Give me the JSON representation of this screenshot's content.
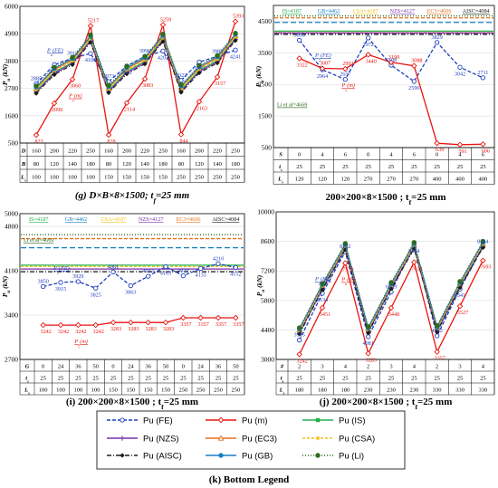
{
  "colors": {
    "Pu (FE)": "#1f3fbf",
    "Pu (m)": "#e8150f",
    "Pu (IS)": "#22b04b",
    "Pu (NZS)": "#7b2fa8",
    "Pu (EC3)": "#e8701a",
    "Pu (CSA)": "#f2c21b",
    "Pu (AISC)": "#1c1c1c",
    "Pu (GB)": "#1a7fc1",
    "Pu (Li)": "#2e6b1e"
  },
  "chart_data": [
    {
      "id": "g",
      "type": "line",
      "title": "(g) D×B×8×1500; t",
      "title_sub": "f",
      "title_tail": "=25 mm",
      "ylabel": "P",
      "ylabel_sub": "u",
      "ylabel_unit": " (kN)",
      "yticks": [
        500,
        1600,
        2700,
        3800,
        4900,
        6000
      ],
      "ylim": [
        500,
        6000
      ],
      "table": [
        {
          "label": "D",
          "values": [
            "160",
            "200",
            "220",
            "250",
            "160",
            "200",
            "220",
            "250",
            "160",
            "200",
            "220",
            "250"
          ]
        },
        {
          "label": "B",
          "values": [
            "80",
            "120",
            "140",
            "180",
            "80",
            "120",
            "140",
            "180",
            "80",
            "120",
            "140",
            "180"
          ]
        },
        {
          "label": "L",
          "sub": "s",
          "values": [
            "100",
            "100",
            "100",
            "100",
            "150",
            "150",
            "150",
            "150",
            "250",
            "250",
            "250",
            "250"
          ]
        }
      ],
      "series": [
        {
          "name": "Pu (FE)",
          "values": [
            2885,
            3655,
            3912,
            4100,
            2973,
            3601,
            3990,
            4202,
            3022,
            3760,
            3985,
            4241
          ]
        },
        {
          "name": "Pu (m)",
          "values": [
            823,
            2099,
            3060,
            5217,
            828,
            2114,
            3083,
            5259,
            844,
            2163,
            3157,
            5393
          ]
        },
        {
          "name": "Pu (IS)",
          "values": [
            2600,
            3350,
            3750,
            4650,
            2620,
            3380,
            3780,
            4680,
            2640,
            3420,
            3820,
            4720
          ]
        },
        {
          "name": "Pu (NZS)",
          "values": [
            2550,
            3300,
            3700,
            4600,
            2570,
            3330,
            3730,
            4630,
            2590,
            3370,
            3770,
            4670
          ]
        },
        {
          "name": "Pu (EC3)",
          "values": [
            2700,
            3450,
            3850,
            4750,
            2720,
            3480,
            3880,
            4780,
            2740,
            3520,
            3920,
            4820
          ]
        },
        {
          "name": "Pu (CSA)",
          "values": [
            2650,
            3400,
            3800,
            4700,
            2670,
            3430,
            3830,
            4730,
            2690,
            3470,
            3870,
            4770
          ]
        },
        {
          "name": "Pu (AISC)",
          "values": [
            2500,
            3250,
            3650,
            4550,
            2520,
            3280,
            3680,
            4580,
            2540,
            3320,
            3720,
            4620
          ]
        },
        {
          "name": "Pu (GB)",
          "values": [
            2750,
            3500,
            3900,
            4800,
            2770,
            3530,
            3930,
            4830,
            2790,
            3570,
            3970,
            4870
          ]
        },
        {
          "name": "Pu (Li)",
          "values": [
            2800,
            3550,
            3950,
            4850,
            2820,
            3580,
            3980,
            4880,
            2840,
            3620,
            4020,
            4920
          ]
        }
      ],
      "labels_fe": [
        "2885",
        "3655",
        "3912",
        "4100",
        "2973",
        "3601",
        "3990",
        "4202",
        "3022",
        "3760",
        "3985",
        "4241"
      ],
      "labels_m": [
        "823",
        "2099",
        "3060",
        "5217",
        "828",
        "2114",
        "3083",
        "5259",
        "844",
        "2163",
        "3157",
        "5393"
      ],
      "inline": {
        "fe": "P",
        "fe_sub": "u",
        "fe_tail": "(FE)",
        "m": "P",
        "m_sub": "u",
        "m_tail": "(m)"
      }
    },
    {
      "id": "h",
      "type": "line",
      "title": "200×200×8×1500 ; t",
      "title_sub": "f",
      "title_tail": "=25 mm",
      "ylabel": "P",
      "ylabel_sub": "u",
      "ylabel_unit": " (kN)",
      "yticks": [
        500,
        1500,
        2500,
        3500,
        4500
      ],
      "ylim": [
        500,
        5000
      ],
      "table": [
        {
          "label": "S",
          "values": [
            "0",
            "4",
            "6",
            "0",
            "4",
            "6",
            "0",
            "4",
            "6"
          ]
        },
        {
          "label": "t",
          "sub": "s",
          "values": [
            "25",
            "25",
            "25",
            "25",
            "25",
            "25",
            "25",
            "25",
            "25"
          ]
        },
        {
          "label": "L",
          "sub": "s",
          "values": [
            "120",
            "120",
            "120",
            "270",
            "270",
            "270",
            "400",
            "400",
            "400"
          ]
        }
      ],
      "codes": [
        {
          "name": "IS=4187",
          "value": 4187,
          "series": "Pu (IS)"
        },
        {
          "name": "GB=4462",
          "value": 4462,
          "series": "Pu (GB)"
        },
        {
          "name": "CSA=4187",
          "value": 4187,
          "series": "Pu (CSA)"
        },
        {
          "name": "NZS=4127",
          "value": 4127,
          "series": "Pu (NZS)"
        },
        {
          "name": "EC3=4606",
          "value": 4606,
          "series": "Pu (EC3)"
        },
        {
          "name": "AISC=4084",
          "value": 4084,
          "series": "Pu (AISC)"
        }
      ],
      "li_label": "Li et al=4669",
      "series": [
        {
          "name": "Pu (FE)",
          "values": [
            3898,
            2964,
            2657,
            3972,
            3108,
            2596,
            3829,
            3042,
            2711
          ]
        },
        {
          "name": "Pu (m)",
          "values": [
            3322,
            3007,
            2993,
            3440,
            3199,
            3088,
            639,
            591,
            606
          ]
        }
      ],
      "labels_fe": [
        "3898",
        "2964",
        "2657",
        "3972",
        "3108",
        "2596",
        "3829",
        "3042",
        "2711"
      ],
      "labels_m": [
        "3322",
        "3007",
        "2993",
        "3440",
        "3199",
        "3088",
        "639",
        "591",
        "606"
      ],
      "inline": {
        "fe": "P",
        "fe_sub": "u",
        "fe_tail": "(FE)",
        "m": "P",
        "m_sub": "u",
        "m_tail": "(m)"
      }
    },
    {
      "id": "i",
      "type": "line",
      "title": "(i) 200×200×8×1500 ; t",
      "title_sub": "f",
      "title_tail": "=25 mm",
      "ylabel": "P",
      "ylabel_sub": "u",
      "ylabel_unit": " (kN)",
      "yticks": [
        2700,
        3400,
        4100,
        4800
      ],
      "ylim": [
        2700,
        5000
      ],
      "ytick_labels": [
        "2700",
        "3400",
        "4100",
        "4800",
        "5000"
      ],
      "table": [
        {
          "label": "G",
          "values": [
            "0",
            "24",
            "36",
            "50",
            "0",
            "24",
            "36",
            "50",
            "0",
            "24",
            "36",
            "50"
          ]
        },
        {
          "label": "t",
          "sub": "s",
          "values": [
            "25",
            "25",
            "25",
            "25",
            "25",
            "25",
            "25",
            "25",
            "25",
            "25",
            "25",
            "25"
          ]
        },
        {
          "label": "L",
          "sub": "s",
          "values": [
            "100",
            "100",
            "100",
            "100",
            "150",
            "150",
            "150",
            "150",
            "250",
            "250",
            "250",
            "250"
          ]
        }
      ],
      "codes": [
        {
          "name": "IS=4187",
          "value": 4187,
          "series": "Pu (IS)"
        },
        {
          "name": "GB=4462",
          "value": 4462,
          "series": "Pu (GB)"
        },
        {
          "name": "CSA=4187",
          "value": 4187,
          "series": "Pu (CSA)"
        },
        {
          "name": "NZS=4127",
          "value": 4127,
          "series": "Pu (NZS)"
        },
        {
          "name": "EC3=4606",
          "value": 4606,
          "series": "Pu (EC3)"
        },
        {
          "name": "AISC=4084",
          "value": 4084,
          "series": "Pu (AISC)"
        }
      ],
      "li_label": "Li et al=4669",
      "series": [
        {
          "name": "Pu (FE)",
          "values": [
            3850,
            3915,
            3929,
            3825,
            4081,
            3863,
            4013,
            4163,
            4020,
            4135,
            4210,
            4152
          ]
        },
        {
          "name": "Pu (m)",
          "values": [
            3242,
            3242,
            3242,
            3242,
            3283,
            3283,
            3283,
            3283,
            3357,
            3357,
            3357,
            3357
          ]
        }
      ],
      "labels_fe": [
        "3850",
        "3915",
        "3929",
        "3825",
        "4081",
        "3863",
        "4013",
        "4163",
        "4020",
        "4135",
        "4210",
        "4152"
      ],
      "labels_m": [
        "3242",
        "3242",
        "3242",
        "3242",
        "3283",
        "3283",
        "3283",
        "3283",
        "3357",
        "3357",
        "3357",
        "3357"
      ],
      "inline": {
        "fe": "P",
        "fe_sub": "u",
        "fe_tail": "(FE)",
        "m": "P",
        "m_sub": "u",
        "m_tail": "(m)"
      }
    },
    {
      "id": "j",
      "type": "line",
      "title": "(j) 200×200×8×1500 ; t",
      "title_sub": "f",
      "title_tail": "=25 mm",
      "ylabel": "P",
      "ylabel_sub": "u",
      "ylabel_unit": " (kN)",
      "yticks": [
        3000,
        4400,
        5800,
        7200,
        8600,
        10000
      ],
      "ylim": [
        3000,
        10000
      ],
      "table": [
        {
          "label": "#",
          "values": [
            "2",
            "3",
            "4",
            "2",
            "3",
            "4",
            "2",
            "3",
            "4"
          ]
        },
        {
          "label": "t",
          "sub": "s",
          "values": [
            "25",
            "25",
            "25",
            "25",
            "25",
            "25",
            "25",
            "25",
            "25"
          ]
        },
        {
          "label": "L",
          "sub": "s",
          "values": [
            "180",
            "180",
            "180",
            "230",
            "230",
            "230",
            "330",
            "330",
            "330"
          ]
        }
      ],
      "series": [
        {
          "name": "Pu (FE)",
          "values": [
            3915,
            6134,
            8102,
            4081,
            6209,
            8444,
            4122,
            6341,
            8344
          ]
        },
        {
          "name": "Pu (m)",
          "values": [
            3242,
            5451,
            7570,
            3283,
            5448,
            7613,
            3357,
            5527,
            7693
          ]
        },
        {
          "name": "Pu (IS)",
          "values": [
            4300,
            6400,
            8300,
            4350,
            6450,
            8350,
            4400,
            6500,
            8400
          ]
        },
        {
          "name": "Pu (NZS)",
          "values": [
            4250,
            6350,
            8250,
            4300,
            6400,
            8300,
            4350,
            6450,
            8350
          ]
        },
        {
          "name": "Pu (EC3)",
          "values": [
            4400,
            6500,
            8400,
            4450,
            6550,
            8450,
            4500,
            6600,
            8500
          ]
        },
        {
          "name": "Pu (CSA)",
          "values": [
            4350,
            6450,
            8350,
            4400,
            6500,
            8400,
            4450,
            6550,
            8450
          ]
        },
        {
          "name": "Pu (AISC)",
          "values": [
            4200,
            6300,
            8200,
            4250,
            6350,
            8250,
            4300,
            6400,
            8300
          ]
        },
        {
          "name": "Pu (GB)",
          "values": [
            4450,
            6550,
            8450,
            4500,
            6600,
            8500,
            4550,
            6650,
            8550
          ]
        },
        {
          "name": "Pu (Li)",
          "values": [
            4500,
            6600,
            8500,
            4550,
            6650,
            8550,
            4600,
            6700,
            8600
          ]
        }
      ],
      "labels_fe": [
        "3915",
        "6134",
        "8102",
        "4081",
        "6209",
        "8444",
        "4122",
        "6341",
        "8344"
      ],
      "labels_m": [
        "3242",
        "5451",
        "7570",
        "3283",
        "5448",
        "7613",
        "3357",
        "5527",
        "7693"
      ],
      "inline": {
        "fe": "P",
        "fe_sub": "u",
        "fe_tail": "(FE)",
        "m": "P",
        "m_sub": "u",
        "m_tail": "(m)"
      }
    }
  ],
  "legend": {
    "title": "(k) Bottom Legend",
    "entries": [
      {
        "series": "Pu (FE)",
        "label": "Pu (FE)",
        "marker": "circle-open",
        "dash": "4,2"
      },
      {
        "series": "Pu (m)",
        "label": "Pu (m)",
        "marker": "diamond-open",
        "dash": ""
      },
      {
        "series": "Pu (IS)",
        "label": "Pu (IS)",
        "marker": "square",
        "dash": ""
      },
      {
        "series": "Pu (NZS)",
        "label": "Pu (NZS)",
        "marker": "plus",
        "dash": ""
      },
      {
        "series": "Pu (EC3)",
        "label": "Pu (EC3)",
        "marker": "triangle-open",
        "dash": ""
      },
      {
        "series": "Pu (CSA)",
        "label": "Pu (CSA)",
        "marker": "star",
        "dash": "3,2"
      },
      {
        "series": "Pu (AISC)",
        "label": "Pu (AISC)",
        "marker": "diamond",
        "dash": "5,2,1,2"
      },
      {
        "series": "Pu (GB)",
        "label": "Pu (GB)",
        "marker": "circle",
        "dash": ""
      },
      {
        "series": "Pu (Li)",
        "label": "Pu (Li)",
        "marker": "circle",
        "dash": "1,2"
      }
    ]
  }
}
